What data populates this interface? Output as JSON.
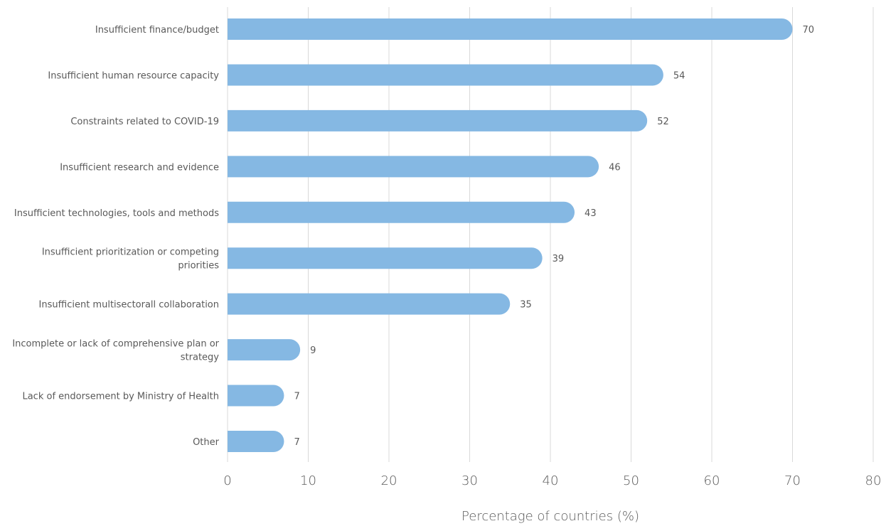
{
  "chart_data": {
    "type": "bar",
    "orientation": "horizontal",
    "categories": [
      [
        "Insufficient finance/budget"
      ],
      [
        "Insufficient human resource capacity"
      ],
      [
        "Constraints related to COVID-19"
      ],
      [
        "Insufficient research and evidence"
      ],
      [
        "Insufficient technologies, tools and methods"
      ],
      [
        "Insufficient prioritization or competing",
        "priorities"
      ],
      [
        "Insufficient multisectorall collaboration"
      ],
      [
        "Incomplete or lack of comprehensive plan or",
        "strategy"
      ],
      [
        "Lack of endorsement by Ministry of Health"
      ],
      [
        "Other"
      ]
    ],
    "values": [
      70,
      54,
      52,
      46,
      43,
      39,
      35,
      9,
      7,
      7
    ],
    "data_labels": [
      "70",
      "54",
      "52",
      "46",
      "43",
      "39",
      "35",
      "9",
      "7",
      "7"
    ],
    "xlabel": "Percentage of countries (%)",
    "ylabel": "",
    "xlim": [
      0,
      80
    ],
    "xticks": [
      0,
      10,
      20,
      30,
      40,
      50,
      60,
      70,
      80
    ],
    "xtick_labels": [
      "0",
      "10",
      "20",
      "30",
      "40",
      "50",
      "60",
      "70",
      "80"
    ],
    "grid": "vertical",
    "legend": "none",
    "colors": {
      "bar": "#85b8e3",
      "grid": "#d9d9d9",
      "text": "#595959"
    }
  }
}
